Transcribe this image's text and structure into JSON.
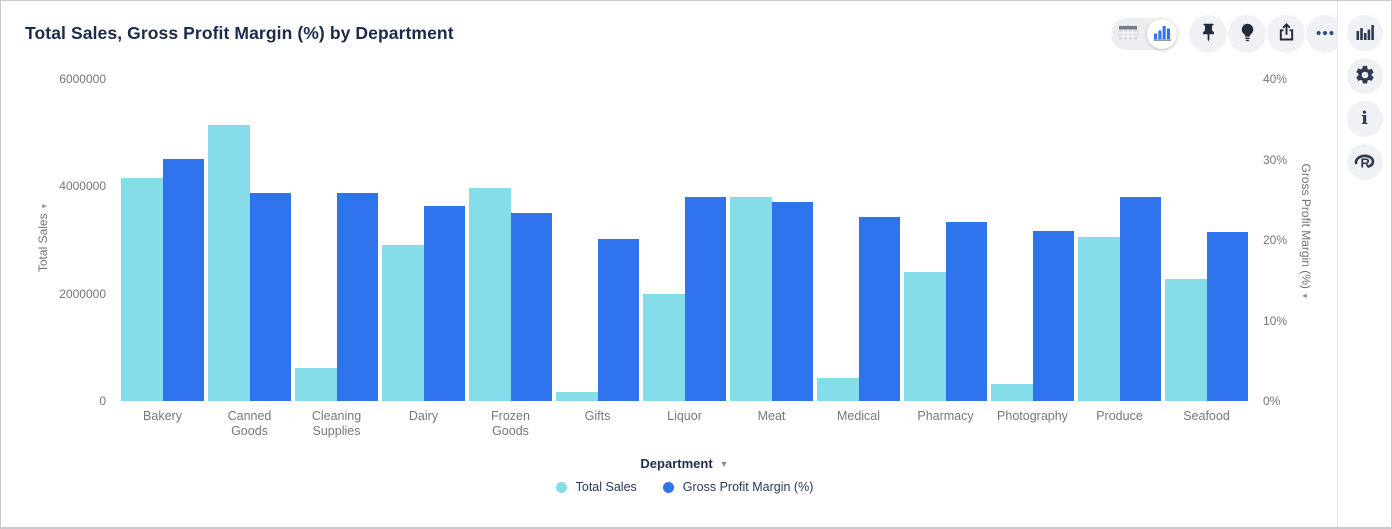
{
  "header": {
    "title": "Total Sales, Gross Profit Margin (%) by Department"
  },
  "toolbar": {
    "view_toggle": [
      {
        "name": "table-view",
        "icon": "table-grid-icon",
        "selected": false
      },
      {
        "name": "chart-view",
        "icon": "bar-chart-icon",
        "selected": true
      }
    ],
    "buttons": [
      {
        "name": "pin",
        "icon": "pin-icon"
      },
      {
        "name": "explore",
        "icon": "lightbulb-icon"
      },
      {
        "name": "export",
        "icon": "share-up-icon"
      },
      {
        "name": "more",
        "icon": "ellipsis-icon"
      }
    ]
  },
  "side_rail": {
    "buttons": [
      {
        "name": "chart-type",
        "icon": "bar-chart-icon"
      },
      {
        "name": "settings",
        "icon": "gear-icon"
      },
      {
        "name": "info",
        "icon": "info-icon",
        "glyph": "i"
      },
      {
        "name": "r-analytics",
        "icon": "r-logo-icon"
      }
    ]
  },
  "chart_data": {
    "type": "bar",
    "title": "Total Sales, Gross Profit Margin (%) by Department",
    "categories": [
      "Bakery",
      "Canned Goods",
      "Cleaning Supplies",
      "Dairy",
      "Frozen Goods",
      "Gifts",
      "Liquor",
      "Meat",
      "Medical",
      "Pharmacy",
      "Photography",
      "Produce",
      "Seafood"
    ],
    "series": [
      {
        "name": "Total Sales",
        "axis": "left",
        "color": "#84dde8",
        "values": [
          4150000,
          5150000,
          610000,
          2900000,
          3970000,
          170000,
          2000000,
          3800000,
          430000,
          2400000,
          320000,
          3060000,
          2270000
        ]
      },
      {
        "name": "Gross Profit Margin (%)",
        "axis": "right",
        "color": "#3074ed",
        "values": [
          30.1,
          25.9,
          25.8,
          24.2,
          23.4,
          20.1,
          25.4,
          24.7,
          22.9,
          22.3,
          21.1,
          25.3,
          21.0
        ]
      }
    ],
    "left_axis": {
      "label": "Total Sales",
      "min": 0,
      "max": 6000000,
      "ticks": [
        {
          "label": "6000000",
          "value": 6000000
        },
        {
          "label": "4000000",
          "value": 4000000
        },
        {
          "label": "2000000",
          "value": 2000000
        },
        {
          "label": "0",
          "value": 0
        }
      ]
    },
    "right_axis": {
      "label": "Gross Profit Margin (%)",
      "min": 0,
      "max": 40,
      "unit": "%",
      "ticks": [
        {
          "label": "40%",
          "value": 40
        },
        {
          "label": "30%",
          "value": 30
        },
        {
          "label": "20%",
          "value": 20
        },
        {
          "label": "10%",
          "value": 10
        },
        {
          "label": "0%",
          "value": 0
        }
      ]
    },
    "xlabel": "Department",
    "legend_position": "bottom",
    "grid": false
  },
  "colors": {
    "accent_blue": "#3074ed",
    "accent_cyan": "#84dde8",
    "title_navy": "#1c2b4b",
    "icon_navy": "#2e3a52"
  }
}
